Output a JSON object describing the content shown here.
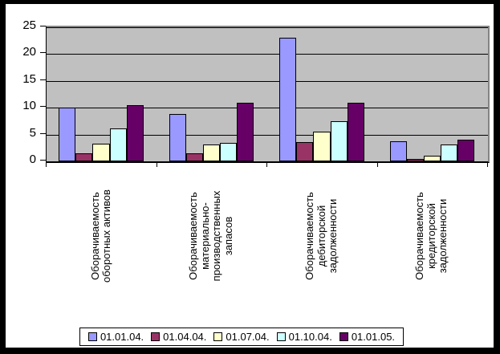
{
  "chart_data": {
    "type": "bar",
    "title": "",
    "xlabel": "",
    "ylabel": "",
    "ylim": [
      0,
      25
    ],
    "y_ticks": [
      0,
      5,
      10,
      15,
      20,
      25
    ],
    "grid": true,
    "legend_position": "bottom",
    "plot_background": "#C0C0C0",
    "categories": [
      "Оборачиваемость\nоборотных активов",
      "Оборачиваемость\nматериально-\nпроизводственных\nзапасов",
      "Оборачиваемость\nдебиторской\nзадолженности",
      "Оборачиваемость\nкредиторской\nзадолженности"
    ],
    "series": [
      {
        "name": "01.01.04.",
        "color": "#9999FF",
        "values": [
          10.0,
          8.8,
          23.0,
          3.7
        ]
      },
      {
        "name": "01.04.04.",
        "color": "#993366",
        "values": [
          1.5,
          1.5,
          3.6,
          0.5
        ]
      },
      {
        "name": "01.07.04.",
        "color": "#FFFFCC",
        "values": [
          3.3,
          3.1,
          5.6,
          1.0
        ]
      },
      {
        "name": "01.10.04.",
        "color": "#CCFFFF",
        "values": [
          6.2,
          3.5,
          7.5,
          3.2
        ]
      },
      {
        "name": "01.01.05.",
        "color": "#660066",
        "values": [
          10.5,
          11.0,
          11.0,
          4.0
        ]
      }
    ]
  }
}
